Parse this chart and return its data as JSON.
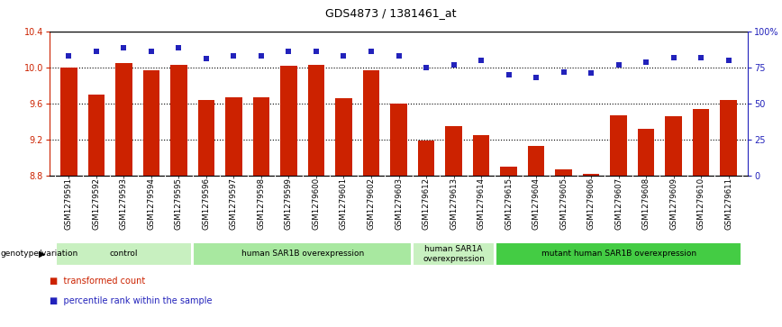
{
  "title": "GDS4873 / 1381461_at",
  "samples": [
    "GSM1279591",
    "GSM1279592",
    "GSM1279593",
    "GSM1279594",
    "GSM1279595",
    "GSM1279596",
    "GSM1279597",
    "GSM1279598",
    "GSM1279599",
    "GSM1279600",
    "GSM1279601",
    "GSM1279602",
    "GSM1279603",
    "GSM1279612",
    "GSM1279613",
    "GSM1279614",
    "GSM1279615",
    "GSM1279604",
    "GSM1279605",
    "GSM1279606",
    "GSM1279607",
    "GSM1279608",
    "GSM1279609",
    "GSM1279610",
    "GSM1279611"
  ],
  "bar_values": [
    10.0,
    9.7,
    10.05,
    9.97,
    10.03,
    9.64,
    9.67,
    9.67,
    10.02,
    10.03,
    9.66,
    9.97,
    9.6,
    9.19,
    9.35,
    9.25,
    8.9,
    9.13,
    8.87,
    8.82,
    9.47,
    9.32,
    9.46,
    9.54,
    9.64
  ],
  "dot_values_pct": [
    83,
    86,
    89,
    86,
    89,
    81,
    83,
    83,
    86,
    86,
    83,
    86,
    83,
    75,
    77,
    80,
    70,
    68,
    72,
    71,
    77,
    79,
    82,
    82,
    80
  ],
  "groups": [
    {
      "label": "control",
      "start": 0,
      "end": 4,
      "color": "#c8f0c0"
    },
    {
      "label": "human SAR1B overexpression",
      "start": 5,
      "end": 12,
      "color": "#a8e8a0"
    },
    {
      "label": "human SAR1A\noverexpression",
      "start": 13,
      "end": 15,
      "color": "#c8f0c0"
    },
    {
      "label": "mutant human SAR1B overexpression",
      "start": 16,
      "end": 24,
      "color": "#44cc44"
    }
  ],
  "ylim": [
    8.8,
    10.4
  ],
  "yticks_left": [
    8.8,
    9.2,
    9.6,
    10.0,
    10.4
  ],
  "yticks_right": [
    0,
    25,
    50,
    75,
    100
  ],
  "bar_color": "#cc2200",
  "dot_color": "#2222bb",
  "hgrid_values": [
    9.2,
    9.6,
    10.0
  ],
  "xtick_bg": "#cccccc",
  "fig_width": 8.68,
  "fig_height": 3.63
}
